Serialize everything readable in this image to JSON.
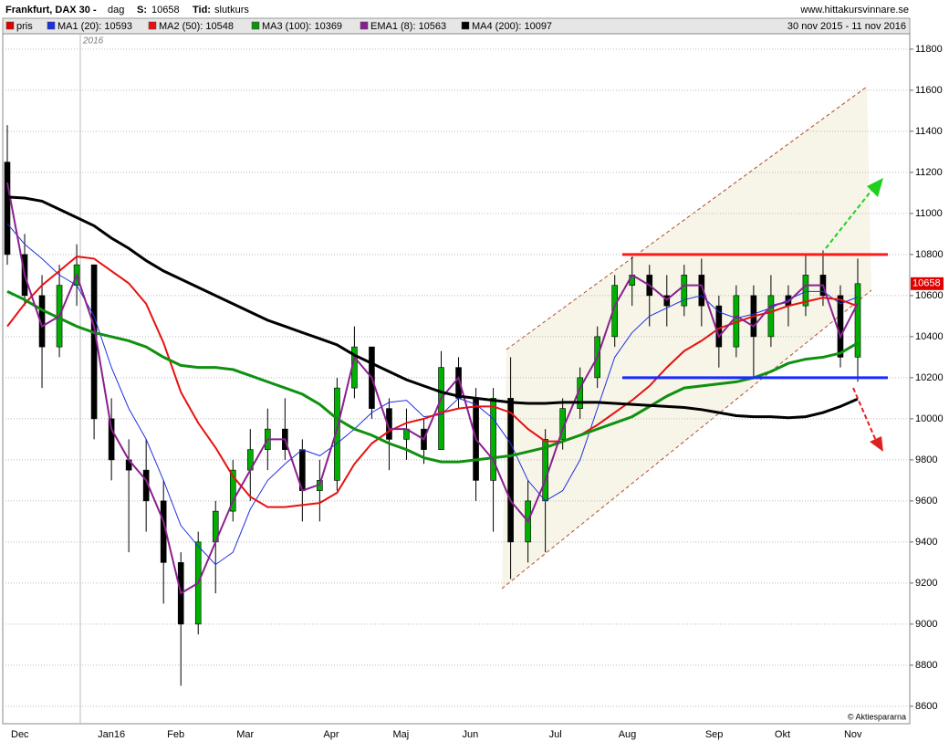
{
  "chart_data": {
    "type": "candlestick",
    "title": "Frankfurt, DAX 30 -",
    "period": "dag",
    "price_label": "S:",
    "time_label": "Tid:",
    "time_value": "slutkurs",
    "source": "www.hittakursvinnare.se",
    "date_range": "30 nov 2015 - 11 nov 2016",
    "year_label": "2016",
    "credit": "© Aktiespararna",
    "candle_name": "pris",
    "candle_color": "#e00000",
    "up_color": "#00b000",
    "down_color": "#000000",
    "categories": [
      "Dec",
      null,
      null,
      null,
      null,
      "Jan16",
      null,
      null,
      null,
      "Feb",
      null,
      null,
      null,
      "Mar",
      null,
      null,
      null,
      null,
      "Apr",
      null,
      null,
      null,
      "Maj",
      null,
      null,
      null,
      "Jun",
      null,
      null,
      null,
      null,
      "Jul",
      null,
      null,
      null,
      "Aug",
      null,
      null,
      null,
      null,
      "Sep",
      null,
      null,
      null,
      "Okt",
      null,
      null,
      null,
      "Nov",
      null
    ],
    "candles": [
      [
        11250,
        11430,
        10750,
        10800
      ],
      [
        10800,
        10900,
        10550,
        10600
      ],
      [
        10600,
        10700,
        10150,
        10350
      ],
      [
        10350,
        10750,
        10300,
        10650
      ],
      [
        10650,
        10850,
        10550,
        10750
      ],
      [
        10750,
        10750,
        9900,
        10000
      ],
      [
        10000,
        10100,
        9700,
        9800
      ],
      [
        9800,
        9900,
        9350,
        9750
      ],
      [
        9750,
        9900,
        9450,
        9600
      ],
      [
        9600,
        9700,
        9100,
        9300
      ],
      [
        9300,
        9350,
        8700,
        9000
      ],
      [
        9000,
        9450,
        8950,
        9400
      ],
      [
        9400,
        9600,
        9150,
        9550
      ],
      [
        9550,
        9800,
        9500,
        9750
      ],
      [
        9750,
        9950,
        9600,
        9850
      ],
      [
        9850,
        10050,
        9750,
        9950
      ],
      [
        9950,
        10100,
        9800,
        9850
      ],
      [
        9850,
        9900,
        9500,
        9650
      ],
      [
        9650,
        9800,
        9500,
        9700
      ],
      [
        9700,
        10200,
        9650,
        10150
      ],
      [
        10150,
        10450,
        10100,
        10350
      ],
      [
        10350,
        10350,
        10000,
        10050
      ],
      [
        10050,
        10100,
        9750,
        9900
      ],
      [
        9900,
        10050,
        9800,
        9950
      ],
      [
        9950,
        10000,
        9780,
        9850
      ],
      [
        9850,
        10330,
        9850,
        10250
      ],
      [
        10250,
        10300,
        10050,
        10100
      ],
      [
        10100,
        10150,
        9600,
        9700
      ],
      [
        9700,
        10150,
        9450,
        10100
      ],
      [
        10100,
        10300,
        9220,
        9400
      ],
      [
        9400,
        9700,
        9300,
        9600
      ],
      [
        9600,
        9950,
        9350,
        9900
      ],
      [
        9900,
        10100,
        9850,
        10050
      ],
      [
        10050,
        10250,
        10000,
        10200
      ],
      [
        10200,
        10450,
        10150,
        10400
      ],
      [
        10400,
        10700,
        10350,
        10650
      ],
      [
        10650,
        10790,
        10550,
        10700
      ],
      [
        10700,
        10750,
        10450,
        10600
      ],
      [
        10600,
        10700,
        10450,
        10550
      ],
      [
        10550,
        10750,
        10500,
        10700
      ],
      [
        10700,
        10780,
        10450,
        10550
      ],
      [
        10550,
        10600,
        10250,
        10350
      ],
      [
        10350,
        10650,
        10300,
        10600
      ],
      [
        10600,
        10650,
        10200,
        10400
      ],
      [
        10400,
        10700,
        10350,
        10600
      ],
      [
        10600,
        10650,
        10450,
        10550
      ],
      [
        10550,
        10800,
        10500,
        10700
      ],
      [
        10700,
        10820,
        10550,
        10600
      ],
      [
        10600,
        10650,
        10250,
        10300
      ],
      [
        10300,
        10780,
        10180,
        10658
      ]
    ],
    "series": [
      {
        "name": "MA1 (20): 10593",
        "color": "#2030e0",
        "width": 1,
        "values": [
          10950,
          10850,
          10780,
          10700,
          10650,
          10500,
          10250,
          10050,
          9900,
          9700,
          9480,
          9380,
          9290,
          9350,
          9560,
          9700,
          9780,
          9850,
          9820,
          9880,
          9950,
          10030,
          10080,
          10090,
          10010,
          10020,
          10100,
          10070,
          10000,
          9880,
          9700,
          9600,
          9650,
          9800,
          10050,
          10300,
          10420,
          10500,
          10540,
          10580,
          10600,
          10520,
          10490,
          10510,
          10540,
          10580,
          10620,
          10620,
          10560,
          10593
        ]
      },
      {
        "name": "MA2 (50): 10548",
        "color": "#e81010",
        "width": 2,
        "values": [
          10450,
          10560,
          10650,
          10720,
          10790,
          10780,
          10720,
          10660,
          10560,
          10370,
          10130,
          9980,
          9860,
          9720,
          9620,
          9570,
          9570,
          9580,
          9590,
          9640,
          9780,
          9880,
          9940,
          9980,
          10000,
          10030,
          10050,
          10060,
          10060,
          10030,
          9950,
          9890,
          9890,
          9920,
          9970,
          10030,
          10090,
          10160,
          10250,
          10330,
          10380,
          10440,
          10470,
          10500,
          10520,
          10550,
          10570,
          10590,
          10580,
          10548
        ]
      },
      {
        "name": "MA3 (100): 10369",
        "color": "#109010",
        "width": 3,
        "values": [
          10620,
          10580,
          10530,
          10490,
          10450,
          10420,
          10400,
          10380,
          10350,
          10300,
          10260,
          10250,
          10250,
          10240,
          10210,
          10180,
          10150,
          10120,
          10070,
          10000,
          9950,
          9920,
          9880,
          9850,
          9810,
          9790,
          9790,
          9800,
          9810,
          9820,
          9840,
          9860,
          9890,
          9920,
          9950,
          9980,
          10010,
          10060,
          10110,
          10150,
          10160,
          10170,
          10180,
          10200,
          10230,
          10270,
          10290,
          10300,
          10320,
          10369
        ]
      },
      {
        "name": "EMA1 (8): 10563",
        "color": "#8a2090",
        "width": 2,
        "values": [
          11150,
          10700,
          10450,
          10500,
          10700,
          10450,
          9950,
          9800,
          9700,
          9500,
          9150,
          9200,
          9400,
          9600,
          9750,
          9900,
          9900,
          9650,
          9680,
          9950,
          10300,
          10200,
          9950,
          9950,
          9900,
          10100,
          10200,
          9900,
          9800,
          9600,
          9500,
          9700,
          9950,
          10150,
          10300,
          10550,
          10700,
          10650,
          10580,
          10650,
          10650,
          10400,
          10500,
          10450,
          10550,
          10570,
          10650,
          10650,
          10400,
          10563
        ]
      },
      {
        "name": "MA4 (200): 10097",
        "color": "#000000",
        "width": 3,
        "values": [
          11080,
          11075,
          11060,
          11020,
          10980,
          10940,
          10880,
          10830,
          10770,
          10720,
          10680,
          10640,
          10600,
          10560,
          10520,
          10480,
          10450,
          10420,
          10390,
          10360,
          10310,
          10270,
          10230,
          10190,
          10160,
          10130,
          10110,
          10100,
          10090,
          10080,
          10075,
          10075,
          10080,
          10080,
          10080,
          10075,
          10070,
          10065,
          10060,
          10055,
          10045,
          10030,
          10015,
          10010,
          10010,
          10005,
          10010,
          10030,
          10060,
          10097
        ]
      }
    ],
    "levels": [
      {
        "value": 10800,
        "color": "#ff1a1a"
      },
      {
        "value": 10200,
        "color": "#1a2aff"
      }
    ],
    "ylim": [
      8515,
      11875
    ],
    "yticks": [
      8600,
      8800,
      9000,
      9200,
      9400,
      9600,
      9800,
      10000,
      10200,
      10400,
      10600,
      10800,
      11000,
      11200,
      11400,
      11600,
      11800
    ],
    "grid": true
  }
}
